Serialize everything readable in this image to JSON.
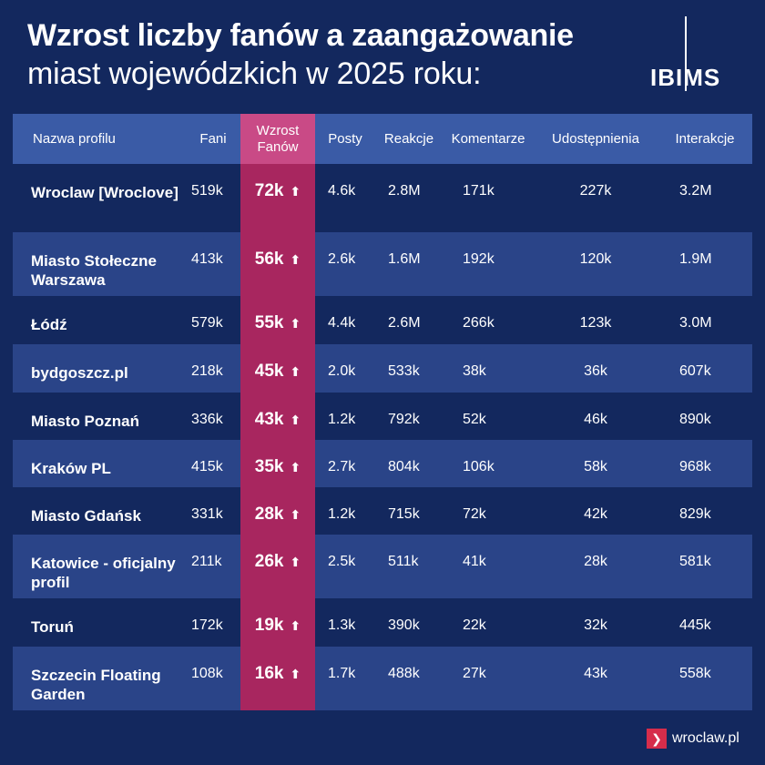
{
  "title_line1": "Wzrost liczby fanów a zaangażowanie",
  "title_line2": "miast wojewódzkich w 2025 roku:",
  "logo": "IBIMS",
  "footer": "wroclaw.pl",
  "colors": {
    "background": "#13285e",
    "header": "#3a5ba6",
    "highlight": "#a8265f",
    "row_light": "#2a4488"
  },
  "chart_data": {
    "type": "table",
    "columns": [
      "Nazwa profilu",
      "Fani",
      "Wzrost Fanów",
      "Posty",
      "Reakcje",
      "Komentarze",
      "Udostępnienia",
      "Interakcje"
    ],
    "rows": [
      [
        "Wroclaw [Wroclove]",
        "519k",
        "72k",
        "4.6k",
        "2.8M",
        "171k",
        "227k",
        "3.2M"
      ],
      [
        "Miasto Stołeczne Warszawa",
        "413k",
        "56k",
        "2.6k",
        "1.6M",
        "192k",
        "120k",
        "1.9M"
      ],
      [
        "Łódź",
        "579k",
        "55k",
        "4.4k",
        "2.6M",
        "266k",
        "123k",
        "3.0M"
      ],
      [
        "bydgoszcz.pl",
        "218k",
        "45k",
        "2.0k",
        "533k",
        "38k",
        "36k",
        "607k"
      ],
      [
        "Miasto Poznań",
        "336k",
        "43k",
        "1.2k",
        "792k",
        "52k",
        "46k",
        "890k"
      ],
      [
        "Kraków PL",
        "415k",
        "35k",
        "2.7k",
        "804k",
        "106k",
        "58k",
        "968k"
      ],
      [
        "Miasto Gdańsk",
        "331k",
        "28k",
        "1.2k",
        "715k",
        "72k",
        "42k",
        "829k"
      ],
      [
        "Katowice - oficjalny profil",
        "211k",
        "26k",
        "2.5k",
        "511k",
        "41k",
        "28k",
        "581k"
      ],
      [
        "Toruń",
        "172k",
        "19k",
        "1.3k",
        "390k",
        "22k",
        "32k",
        "445k"
      ],
      [
        "Szczecin Floating Garden",
        "108k",
        "16k",
        "1.7k",
        "488k",
        "27k",
        "43k",
        "558k"
      ]
    ]
  }
}
